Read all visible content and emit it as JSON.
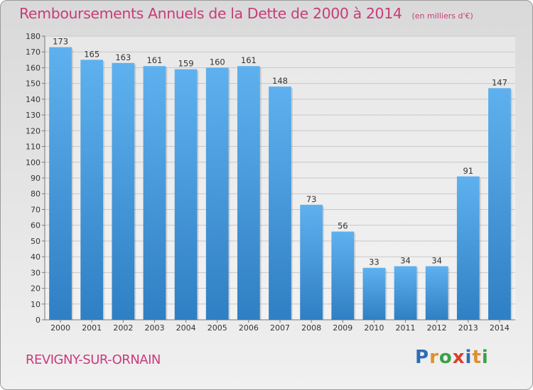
{
  "chart_data": {
    "type": "bar",
    "title": "Remboursements Annuels de la Dette de 2000 à 2014",
    "unit": "(en milliers d'€)",
    "categories": [
      "2000",
      "2001",
      "2002",
      "2003",
      "2004",
      "2005",
      "2006",
      "2007",
      "2008",
      "2009",
      "2010",
      "2011",
      "2012",
      "2013",
      "2014"
    ],
    "values": [
      173,
      165,
      163,
      161,
      159,
      160,
      161,
      148,
      73,
      56,
      33,
      34,
      34,
      91,
      147
    ],
    "ylim": [
      0,
      180
    ],
    "ytick_step": 10,
    "grid": true,
    "bar_color": "#4a9de0"
  },
  "footer": {
    "commune": "REVIGNY-SUR-ORNAIN",
    "logo": "Proxiti",
    "logo_letters": [
      {
        "char": "P",
        "color": "#2e6db4"
      },
      {
        "char": "r",
        "color": "#e0902a"
      },
      {
        "char": "o",
        "color": "#3aa04a"
      },
      {
        "char": "x",
        "color": "#d8402e"
      },
      {
        "char": "i",
        "color": "#2e6db4"
      },
      {
        "char": "t",
        "color": "#e0902a"
      },
      {
        "char": "i",
        "color": "#3aa04a"
      }
    ]
  }
}
